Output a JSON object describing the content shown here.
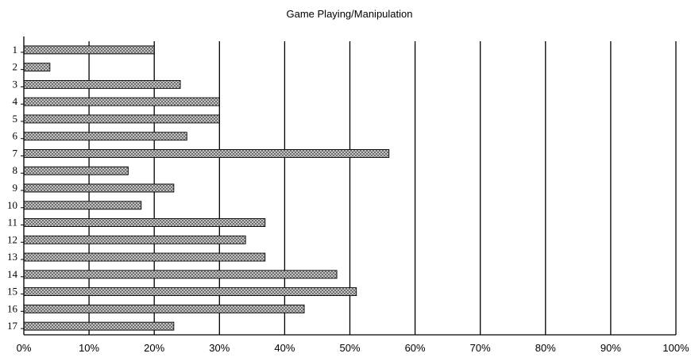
{
  "chart_data": {
    "type": "bar",
    "orientation": "horizontal",
    "title": "Game Playing/Manipulation",
    "xlabel": "",
    "ylabel": "",
    "categories": [
      "1",
      "2",
      "3",
      "4",
      "5",
      "6",
      "7",
      "8",
      "9",
      "10",
      "11",
      "12",
      "13",
      "14",
      "15",
      "16",
      "17"
    ],
    "values": [
      20,
      4,
      24,
      30,
      30,
      25,
      56,
      16,
      23,
      18,
      37,
      34,
      37,
      48,
      51,
      43,
      23
    ],
    "xlim": [
      0,
      100
    ],
    "x_ticks": [
      "0%",
      "10%",
      "20%",
      "30%",
      "40%",
      "50%",
      "60%",
      "70%",
      "80%",
      "90%",
      "100%"
    ],
    "grid": "vertical",
    "legend": "none",
    "bar_fill": "crosshatch-gray"
  }
}
